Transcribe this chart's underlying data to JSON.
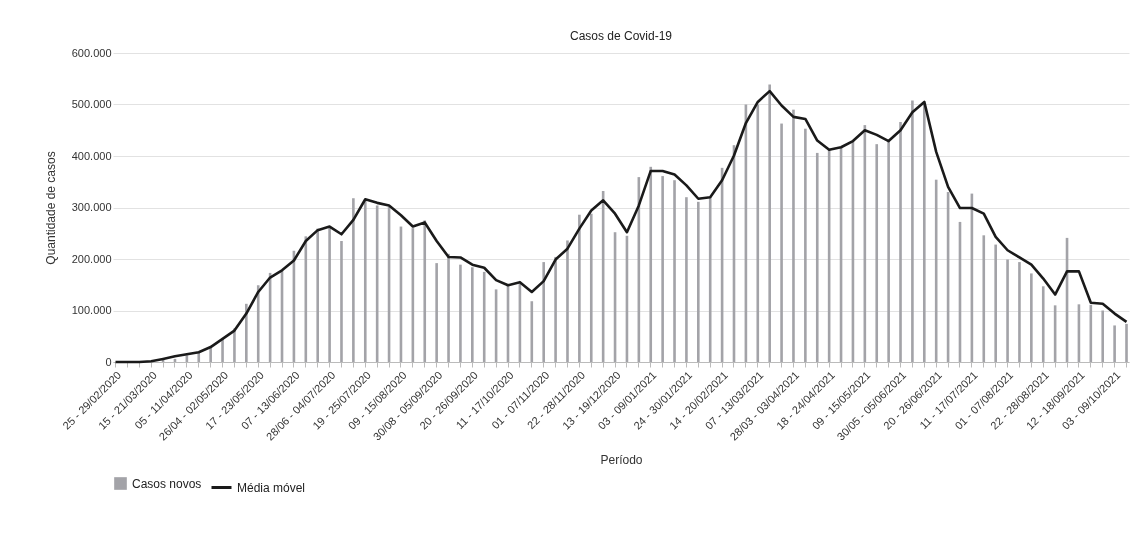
{
  "chart_data": {
    "type": "bar",
    "title": "Casos de Covid-19",
    "xlabel": "Período",
    "ylabel": "Quantidade de casos",
    "categories": [
      "25 - 29/02/2020",
      null,
      null,
      "15 - 21/03/2020",
      null,
      null,
      "05 - 11/04/2020",
      null,
      null,
      "26/04 - 02/05/2020",
      null,
      null,
      "17 - 23/05/2020",
      null,
      null,
      "07 - 13/06/2020",
      null,
      null,
      "28/06 - 04/07/2020",
      null,
      null,
      "19 - 25/07/2020",
      null,
      null,
      "09 - 15/08/2020",
      null,
      null,
      "30/08 - 05/09/2020",
      null,
      null,
      "20 - 26/09/2020",
      null,
      null,
      "11 - 17/10/2020",
      null,
      null,
      "01 - 07/11/2020",
      null,
      null,
      "22 - 28/11/2020",
      null,
      null,
      "13 - 19/12/2020",
      null,
      null,
      "03 - 09/01/2021",
      null,
      null,
      "24 - 30/01/2021",
      null,
      null,
      "14 - 20/02/2021",
      null,
      null,
      "07 - 13/03/2021",
      null,
      null,
      "28/03 - 03/04/2021",
      null,
      null,
      "18 - 24/04/2021",
      null,
      null,
      "09 - 15/05/2021",
      null,
      null,
      "30/05 - 05/06/2021",
      null,
      null,
      "20 - 26/06/2021",
      null,
      null,
      "11 - 17/07/2021",
      null,
      null,
      "01 - 07/08/2021",
      null,
      null,
      "22 - 28/08/2021",
      null,
      null,
      "12 - 18/09/2021",
      null,
      null,
      "03 - 09/10/2021",
      null
    ],
    "series": [
      {
        "name": "Casos novos",
        "color": "#a3a3a8",
        "values": [
          0,
          0,
          0,
          1500,
          4000,
          6000,
          13000,
          19000,
          29000,
          45000,
          65000,
          113000,
          149000,
          173000,
          178000,
          216000,
          244000,
          259000,
          264000,
          235000,
          318000,
          315000,
          304000,
          301000,
          263000,
          260000,
          275000,
          192000,
          210000,
          189000,
          184000,
          175000,
          141000,
          149000,
          152000,
          118000,
          194000,
          204000,
          236000,
          286000,
          288000,
          332000,
          252000,
          245000,
          359000,
          379000,
          361000,
          353000,
          320000,
          311000,
          320000,
          377000,
          421000,
          500000,
          500000,
          539000,
          463000,
          490000,
          453000,
          406000,
          414000,
          417000,
          430000,
          460000,
          423000,
          429000,
          466000,
          508000,
          502000,
          354000,
          330000,
          272000,
          327000,
          246000,
          228000,
          199000,
          194000,
          172000,
          147000,
          110000,
          241000,
          112000,
          111000,
          100000,
          71000,
          74000
        ]
      },
      {
        "name": "Média móvel",
        "type": "line",
        "color": "#1a1a1a",
        "values": [
          0,
          0,
          0,
          1500,
          6000,
          11000,
          15000,
          19000,
          29000,
          45000,
          61000,
          94000,
          136000,
          164000,
          178000,
          197000,
          235000,
          256000,
          263000,
          248000,
          276000,
          316000,
          309000,
          304000,
          285000,
          263000,
          271000,
          235000,
          204000,
          203000,
          189000,
          183000,
          159000,
          149000,
          155000,
          136000,
          157000,
          199000,
          220000,
          259000,
          294000,
          314000,
          288000,
          252000,
          304000,
          371000,
          371000,
          364000,
          343000,
          317000,
          320000,
          353000,
          401000,
          464000,
          505000,
          526000,
          498000,
          476000,
          472000,
          430000,
          412000,
          417000,
          429000,
          450000,
          441000,
          429000,
          450000,
          485000,
          505000,
          408000,
          340000,
          299000,
          299000,
          288000,
          243000,
          217000,
          203000,
          189000,
          162000,
          131000,
          176000,
          176000,
          115000,
          113000,
          94000,
          78000
        ]
      }
    ],
    "ylim": [
      0,
      600000
    ],
    "yticks": [
      {
        "value": 0,
        "label": "0"
      },
      {
        "value": 100000,
        "label": "100.000"
      },
      {
        "value": 200000,
        "label": "200.000"
      },
      {
        "value": 300000,
        "label": "300.000"
      },
      {
        "value": 400000,
        "label": "400.000"
      },
      {
        "value": 500000,
        "label": "500.000"
      },
      {
        "value": 600000,
        "label": "600.000"
      }
    ],
    "grid": "y",
    "legend": "bottom"
  }
}
